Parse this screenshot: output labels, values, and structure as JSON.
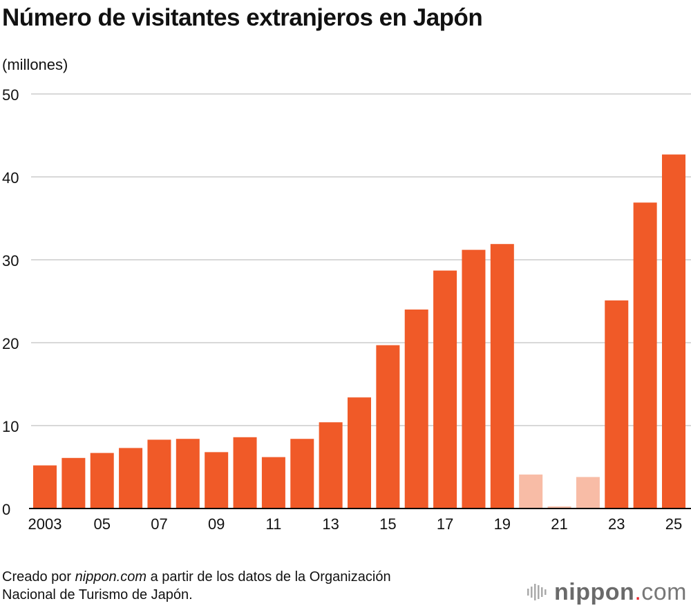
{
  "chart_data": {
    "type": "bar",
    "title": "Número de visitantes extranjeros en Japón",
    "ylabel": "(millones)",
    "xlabel": "",
    "ylim": [
      0,
      50
    ],
    "yticks": [
      0,
      10,
      20,
      30,
      40,
      50
    ],
    "grid": true,
    "categories": [
      "2003",
      "2004",
      "2005",
      "2006",
      "2007",
      "2008",
      "2009",
      "2010",
      "2011",
      "2012",
      "2013",
      "2014",
      "2015",
      "2016",
      "2017",
      "2018",
      "2019",
      "2020",
      "2021",
      "2022",
      "2023",
      "2024",
      "2025"
    ],
    "xtick_labels": {
      "2003": "2003",
      "2005": "05",
      "2007": "07",
      "2009": "09",
      "2011": "11",
      "2013": "13",
      "2015": "15",
      "2017": "17",
      "2019": "19",
      "2021": "21",
      "2023": "23",
      "2025": "25"
    },
    "values": [
      5.2,
      6.1,
      6.7,
      7.3,
      8.3,
      8.4,
      6.8,
      8.6,
      6.2,
      8.4,
      10.4,
      13.4,
      19.7,
      24.0,
      28.7,
      31.2,
      31.9,
      4.1,
      0.25,
      3.8,
      25.1,
      36.9,
      42.7
    ],
    "highlighted_light": [
      "2020",
      "2021",
      "2022"
    ],
    "colors": {
      "bar": "#f05a28",
      "bar_light": "#f8bca6",
      "grid": "#cccccc",
      "axis": "#000000"
    }
  },
  "source": {
    "prefix": "Creado por ",
    "site": "nippon.com",
    "line1_rest": " a partir de los datos de la Organización",
    "line2": "Nacional de Turismo de Japón."
  },
  "logo": {
    "name": "nippon",
    "dot": ".",
    "tld": "com"
  }
}
